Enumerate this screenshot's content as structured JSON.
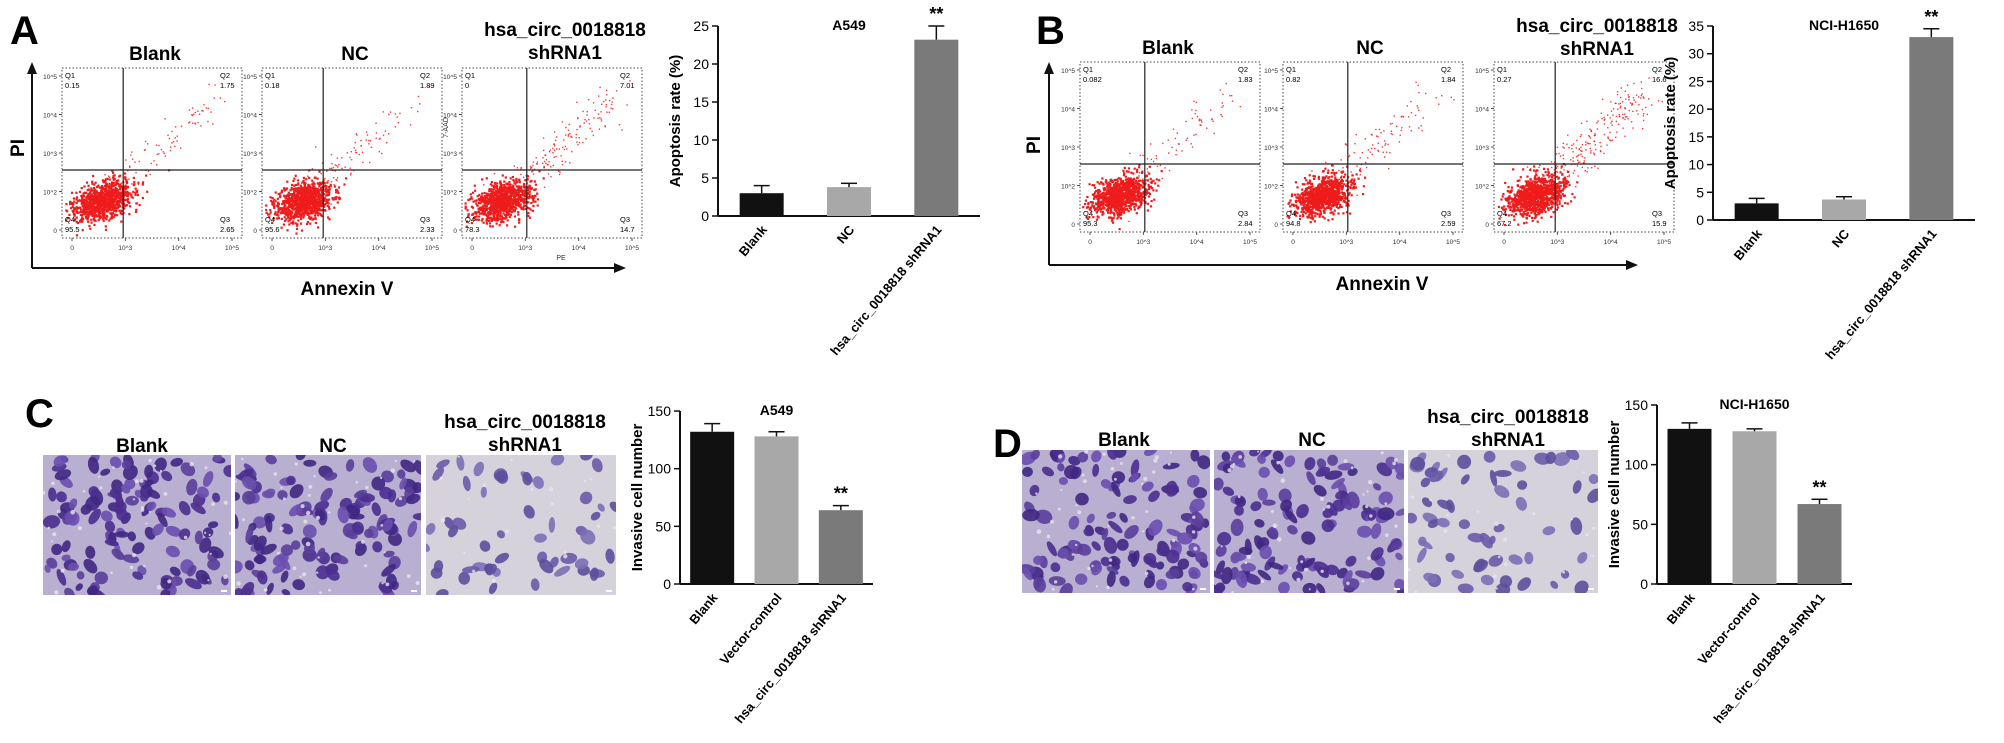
{
  "panels": {
    "A": {
      "letter": "A",
      "x_axis_label": "Annexin V",
      "y_axis_label": "PI"
    },
    "B": {
      "letter": "B",
      "x_axis_label": "Annexin V",
      "y_axis_label": "PI"
    },
    "C": {
      "letter": "C"
    },
    "D": {
      "letter": "D"
    }
  },
  "sample_labels": {
    "blank": "Blank",
    "nc": "NC",
    "sh_line1": "hsa_circ_0018818",
    "sh_line2": "shRNA1"
  },
  "flow_plots": [
    {
      "id": "A-blank",
      "q1": "0.15",
      "q2": "1.75",
      "q3": "2.65",
      "q4": "95.5",
      "y_title": "",
      "x_title": ""
    },
    {
      "id": "A-nc",
      "q1": "0.18",
      "q2": "1.89",
      "q3": "2.33",
      "q4": "95.6",
      "y_title": "",
      "x_title": ""
    },
    {
      "id": "A-sh",
      "q1": "0",
      "q2": "7.01",
      "q3": "14.7",
      "q4": "78.3",
      "y_title": "7-AAD",
      "x_title": "PE"
    },
    {
      "id": "B-blank",
      "q1": "0.082",
      "q2": "1.83",
      "q3": "2.84",
      "q4": "95.3",
      "y_title": "",
      "x_title": ""
    },
    {
      "id": "B-nc",
      "q1": "0.82",
      "q2": "1.84",
      "q3": "2.59",
      "q4": "94.8",
      "y_title": "",
      "x_title": ""
    },
    {
      "id": "B-sh",
      "q1": "0.27",
      "q2": "16.6",
      "q3": "15.9",
      "q4": "67.2",
      "y_title": "",
      "x_title": ""
    }
  ],
  "quadrant_names": [
    "Q1",
    "Q2",
    "Q3",
    "Q4"
  ],
  "flow_ticks": {
    "y": [
      "10^5",
      "10^4",
      "10^3",
      "10^2",
      "0"
    ],
    "x": [
      "0",
      "10^3",
      "10^4",
      "10^5"
    ]
  },
  "colors": {
    "dots": "#ee1c1c",
    "blank_bar": "#111111",
    "nc_bar": "#a8a8a8",
    "sh_bar": "#7a7a7a",
    "stain": "#5a3f9a"
  },
  "chart_data": [
    {
      "id": "apoptosis-A549",
      "type": "bar",
      "title": "A549",
      "categories": [
        "Blank",
        "NC",
        "hsa_circ_0018818 shRNA1"
      ],
      "values": [
        3.0,
        3.8,
        23.2
      ],
      "errors": [
        1.0,
        0.5,
        1.8
      ],
      "ylabel": "Apoptosis rate (%)",
      "ylim": [
        0,
        25
      ],
      "yticks": [
        0,
        5,
        10,
        15,
        20,
        25
      ],
      "significance": [
        "",
        "",
        "**"
      ]
    },
    {
      "id": "apoptosis-H1650",
      "type": "bar",
      "title": "NCI-H1650",
      "categories": [
        "Blank",
        "NC",
        "hsa_circ_0018818 shRNA1"
      ],
      "values": [
        3.0,
        3.7,
        33.0
      ],
      "errors": [
        0.9,
        0.5,
        1.5
      ],
      "ylabel": "Apoptosis rate (%)",
      "ylim": [
        0,
        35
      ],
      "yticks": [
        0,
        5,
        10,
        15,
        20,
        25,
        30,
        35
      ],
      "significance": [
        "",
        "",
        "**"
      ]
    },
    {
      "id": "invasion-A549",
      "type": "bar",
      "title": "A549",
      "categories": [
        "Blank",
        "Vector-control",
        "hsa_circ_0018818 shRNA1"
      ],
      "values": [
        132,
        128,
        64
      ],
      "errors": [
        7,
        4,
        4
      ],
      "ylabel": "Invasive cell number",
      "ylim": [
        0,
        150
      ],
      "yticks": [
        0,
        50,
        100,
        150
      ],
      "significance": [
        "",
        "",
        "**"
      ]
    },
    {
      "id": "invasion-H1650",
      "type": "bar",
      "title": "NCI-H1650",
      "categories": [
        "Blank",
        "Vector-control",
        "hsa_circ_0018818 shRNA1"
      ],
      "values": [
        130,
        128,
        67
      ],
      "errors": [
        5,
        2,
        4
      ],
      "ylabel": "Invasive cell number",
      "ylim": [
        0,
        150
      ],
      "yticks": [
        0,
        50,
        100,
        150
      ],
      "significance": [
        "",
        "",
        "**"
      ]
    }
  ]
}
